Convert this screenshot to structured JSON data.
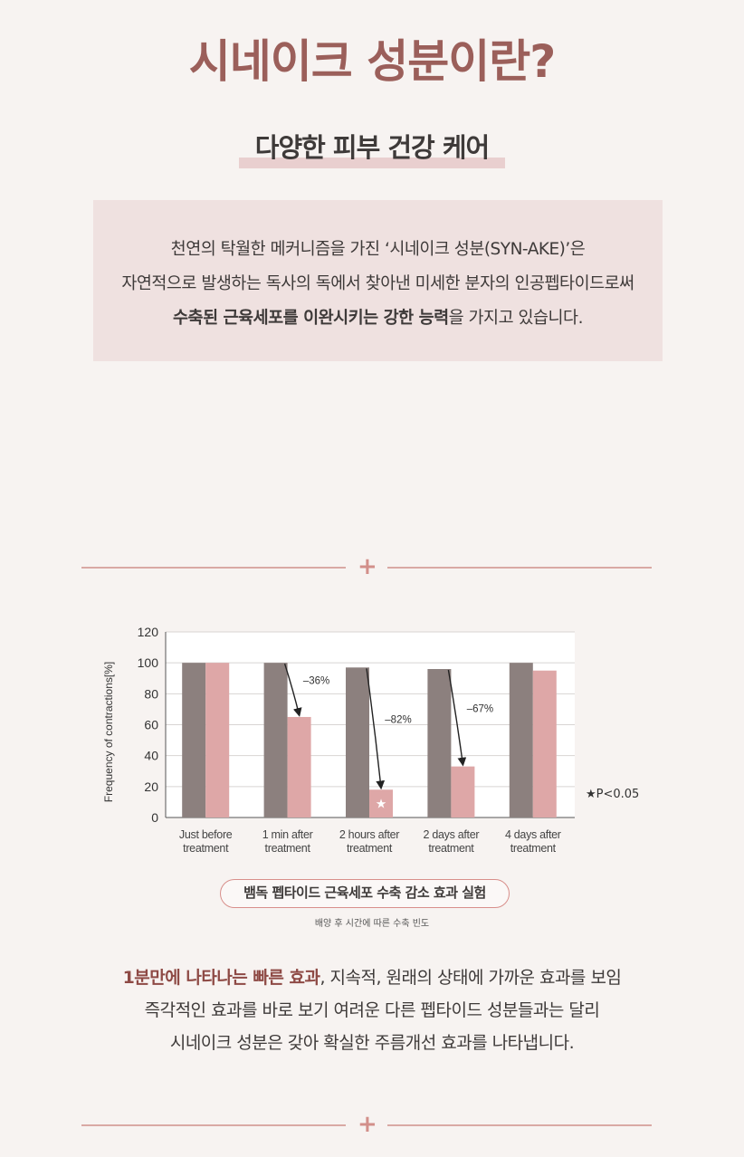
{
  "header": {
    "title": "시네이크 성분이란?",
    "subtitle": "다양한 피부 건강 케어"
  },
  "intro": {
    "line1": "천연의 탁월한 메커니즘을 가진 ‘시네이크 성분(SYN-AKE)’은",
    "line2": "자연적으로 발생하는 독사의 독에서  찾아낸 미세한 분자의 인공펩타이드로써",
    "line3_bold": "수축된 근육세포를 이완시키는 강한 능력",
    "line3_rest": "을 가지고 있습니다."
  },
  "divider_symbol": "+",
  "colors": {
    "accent": "#9b5f5a",
    "bar_before": "#8c807e",
    "bar_after": "#dea7a7",
    "divider": "#d9a9a4"
  },
  "chart_data": {
    "type": "bar",
    "categories": [
      "Just before treatment",
      "1 min after treatment",
      "2 hours after treatment",
      "2 days after treatment",
      "4 days after treatment"
    ],
    "category_lines": [
      [
        "Just before",
        "treatment"
      ],
      [
        "1 min after",
        "treatment"
      ],
      [
        "2 hours after",
        "treatment"
      ],
      [
        "2 days after",
        "treatment"
      ],
      [
        "4 days after",
        "treatment"
      ]
    ],
    "series": [
      {
        "values": [
          100,
          100,
          97,
          96,
          100
        ],
        "color": "#8c807e"
      },
      {
        "values": [
          100,
          65,
          18,
          33,
          95
        ],
        "color": "#dea7a7"
      }
    ],
    "ylabel": "Frequency of contractions[%]",
    "ylim": [
      0,
      120
    ],
    "yticks": [
      0,
      20,
      40,
      60,
      80,
      100,
      120
    ],
    "grid": true,
    "annotations": [
      {
        "category_index": 1,
        "text": "–36%"
      },
      {
        "category_index": 2,
        "text": "–82%"
      },
      {
        "category_index": 3,
        "text": "–67%"
      }
    ],
    "significance_marker": {
      "category_index": 2,
      "symbol": "★"
    },
    "note": "★P<0.05"
  },
  "caption": {
    "title": "뱀독 펩타이드 근육세포 수축 감소 효과 실험",
    "sub": "배양 후  시간에 따른 수축 빈도"
  },
  "summary": {
    "line1_accent": "1분만에 나타나는 빠른 효과",
    "line1_rest": ", 지속적, 원래의 상태에 가까운 효과를 보임",
    "line2": "즉각적인 효과를 바로 보기 여려운 다른 펩타이드 성분들과는 달리",
    "line3": "시네이크 성분은 갖아 확실한 주름개선 효과를 나타냅니다."
  }
}
